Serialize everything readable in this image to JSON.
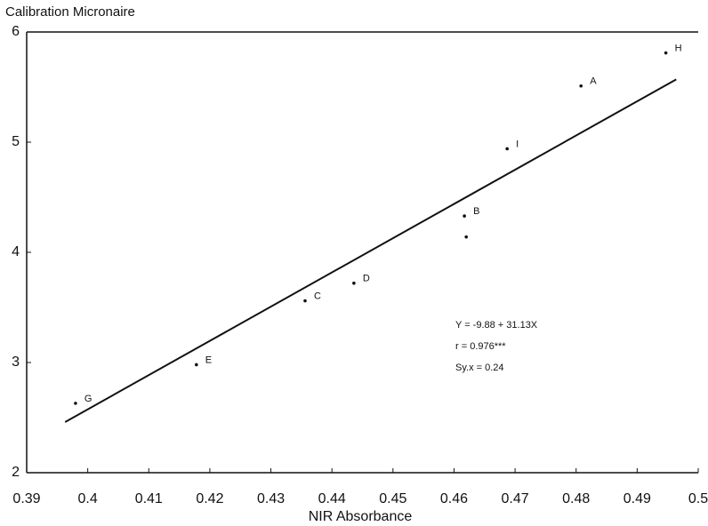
{
  "chart_data": {
    "type": "scatter",
    "title": "Calibration Micronaire",
    "xlabel": "NIR Absorbance",
    "x": [
      0.4947,
      0.4808,
      0.4687,
      0.4617,
      0.462,
      0.4436,
      0.4356,
      0.4178,
      0.398
    ],
    "values": [
      5.81,
      5.51,
      4.94,
      4.33,
      4.14,
      3.72,
      3.56,
      2.98,
      2.63
    ],
    "point_labels": [
      "H",
      "A",
      "I",
      "B",
      null,
      "D",
      "C",
      "E",
      "G"
    ],
    "color": "#111111",
    "fit_line": {
      "x": [
        0.3963,
        0.4964
      ],
      "y": [
        2.46,
        5.57
      ]
    },
    "annotations": [
      "Y = -9.88 + 31.13X",
      "r = 0.976***",
      "Sy.x = 0.24"
    ],
    "xlim": [
      0.39,
      0.5
    ],
    "ylim": [
      2,
      6
    ],
    "xticks": [
      0.39,
      0.4,
      0.41,
      0.42,
      0.43,
      0.44,
      0.45,
      0.46,
      0.47,
      0.48,
      0.49,
      0.5
    ],
    "yticks": [
      2,
      3,
      4,
      5,
      6
    ]
  }
}
